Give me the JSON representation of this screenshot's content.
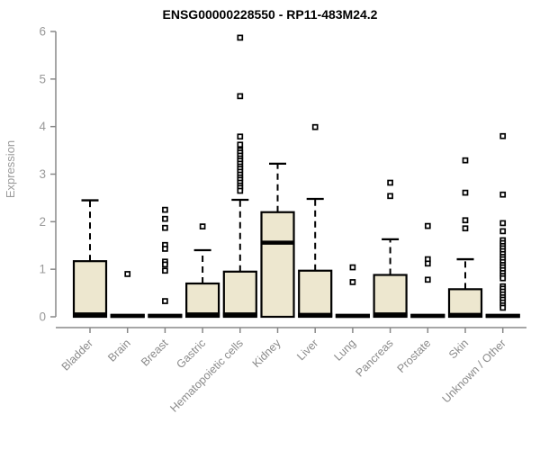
{
  "chart_data": {
    "type": "boxplot",
    "title": "ENSG00000228550 - RP11-483M24.2",
    "ylabel": "Expression",
    "xlabel": "",
    "ylim": [
      0,
      6
    ],
    "yticks": [
      0,
      1,
      2,
      3,
      4,
      5,
      6
    ],
    "grid": false,
    "legend": "none",
    "colors": {
      "box_fill": "#EDE7CF",
      "box_stroke": "#000000",
      "median": "#000000",
      "whisker": "#000000",
      "outlier_stroke": "#000000",
      "outlier_fill": "#ffffff",
      "axis": "#888888",
      "y_tick_label": "#999999",
      "x_tick_label": "#8a8a8a",
      "title": "#000000"
    },
    "categories": [
      "Bladder",
      "Brain",
      "Breast",
      "Gastric",
      "Hematopoietic cells",
      "Kidney",
      "Liver",
      "Lung",
      "Pancreas",
      "Prostate",
      "Skin",
      "Unknown / Other"
    ],
    "boxes": [
      {
        "category": "Bladder",
        "q1": 0,
        "median": 0.05,
        "q3": 1.17,
        "whisker_low": 0,
        "whisker_high": 2.45,
        "outliers": []
      },
      {
        "category": "Brain",
        "q1": 0,
        "median": 0.02,
        "q3": 0.04,
        "whisker_low": 0,
        "whisker_high": 0.04,
        "outliers": [
          0.9
        ]
      },
      {
        "category": "Breast",
        "q1": 0,
        "median": 0.02,
        "q3": 0.04,
        "whisker_low": 0,
        "whisker_high": 0.04,
        "outliers": [
          2.25,
          2.06,
          1.87,
          1.51,
          1.43,
          1.16,
          1.1,
          0.97,
          0.33
        ]
      },
      {
        "category": "Gastric",
        "q1": 0,
        "median": 0.05,
        "q3": 0.7,
        "whisker_low": 0,
        "whisker_high": 1.4,
        "outliers": [
          1.9
        ]
      },
      {
        "category": "Hematopoietic cells",
        "q1": 0,
        "median": 0.05,
        "q3": 0.95,
        "whisker_low": 0,
        "whisker_high": 2.46,
        "outliers": [
          5.87,
          4.64,
          3.79,
          3.62,
          3.5,
          3.45,
          3.39,
          3.33,
          3.28,
          3.22,
          3.16,
          3.11,
          3.05,
          2.99,
          2.93,
          2.88,
          2.82,
          2.76,
          2.71,
          2.65
        ]
      },
      {
        "category": "Kidney",
        "q1": 0,
        "median": 1.56,
        "q3": 2.2,
        "whisker_low": 0,
        "whisker_high": 3.22,
        "outliers": []
      },
      {
        "category": "Liver",
        "q1": 0,
        "median": 0.04,
        "q3": 0.97,
        "whisker_low": 0,
        "whisker_high": 2.48,
        "outliers": [
          3.99
        ]
      },
      {
        "category": "Lung",
        "q1": 0,
        "median": 0.02,
        "q3": 0.04,
        "whisker_low": 0,
        "whisker_high": 0.04,
        "outliers": [
          1.04,
          0.73
        ]
      },
      {
        "category": "Pancreas",
        "q1": 0,
        "median": 0.05,
        "q3": 0.88,
        "whisker_low": 0,
        "whisker_high": 1.63,
        "outliers": [
          2.82,
          2.54
        ]
      },
      {
        "category": "Prostate",
        "q1": 0,
        "median": 0.02,
        "q3": 0.04,
        "whisker_low": 0,
        "whisker_high": 0.04,
        "outliers": [
          1.91,
          1.21,
          1.12,
          0.78
        ]
      },
      {
        "category": "Skin",
        "q1": 0,
        "median": 0.04,
        "q3": 0.58,
        "whisker_low": 0,
        "whisker_high": 1.21,
        "outliers": [
          3.29,
          2.61,
          2.03,
          1.86
        ]
      },
      {
        "category": "Unknown / Other",
        "q1": 0,
        "median": 0.02,
        "q3": 0.04,
        "whisker_low": 0,
        "whisker_high": 0.04,
        "outliers": [
          3.8,
          2.57,
          1.97,
          1.8,
          1.61,
          1.55,
          1.49,
          1.44,
          1.38,
          1.32,
          1.26,
          1.21,
          1.15,
          1.09,
          1.04,
          0.98,
          0.92,
          0.86,
          0.81,
          0.64,
          0.59,
          0.53,
          0.47,
          0.41,
          0.36,
          0.3,
          0.24,
          0.19
        ]
      }
    ]
  }
}
